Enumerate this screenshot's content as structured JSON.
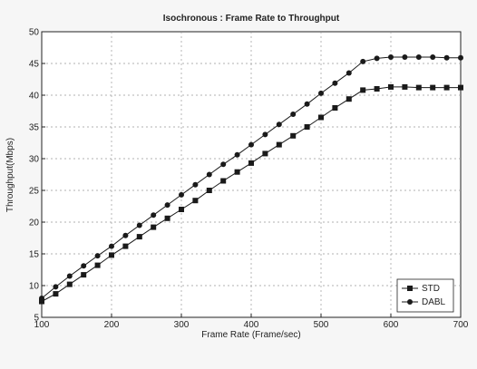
{
  "chart_data": {
    "type": "line",
    "title": "Isochronous : Frame Rate to Throughput",
    "xlabel": "Frame Rate (Frame/sec)",
    "ylabel": "Throughput(Mbps)",
    "xlim": [
      100,
      700
    ],
    "ylim": [
      5,
      50
    ],
    "xticks": [
      100,
      200,
      300,
      400,
      500,
      600,
      700
    ],
    "yticks": [
      5,
      10,
      15,
      20,
      25,
      30,
      35,
      40,
      45,
      50
    ],
    "grid": true,
    "legend_position": "bottom-right",
    "x": [
      100,
      120,
      140,
      160,
      180,
      200,
      220,
      240,
      260,
      280,
      300,
      320,
      340,
      360,
      380,
      400,
      420,
      440,
      460,
      480,
      500,
      520,
      540,
      560,
      580,
      600,
      620,
      640,
      660,
      680,
      700
    ],
    "series": [
      {
        "name": "STD",
        "marker": "square",
        "color": "#1a1a1a",
        "values": [
          7.5,
          8.7,
          10.2,
          11.7,
          13.2,
          14.8,
          16.2,
          17.7,
          19.2,
          20.6,
          22.0,
          23.4,
          25.0,
          26.5,
          27.9,
          29.3,
          30.8,
          32.2,
          33.6,
          35.0,
          36.5,
          38.0,
          39.4,
          40.8,
          41.0,
          41.3,
          41.3,
          41.2,
          41.2,
          41.2,
          41.2
        ]
      },
      {
        "name": "DABL",
        "marker": "circle",
        "color": "#1a1a1a",
        "values": [
          8.0,
          9.8,
          11.5,
          13.1,
          14.7,
          16.2,
          17.9,
          19.5,
          21.1,
          22.7,
          24.3,
          25.9,
          27.5,
          29.1,
          30.6,
          32.2,
          33.8,
          35.4,
          37.0,
          38.6,
          40.3,
          41.9,
          43.5,
          45.3,
          45.8,
          46.0,
          46.0,
          46.0,
          46.0,
          45.9,
          45.9
        ]
      }
    ]
  }
}
